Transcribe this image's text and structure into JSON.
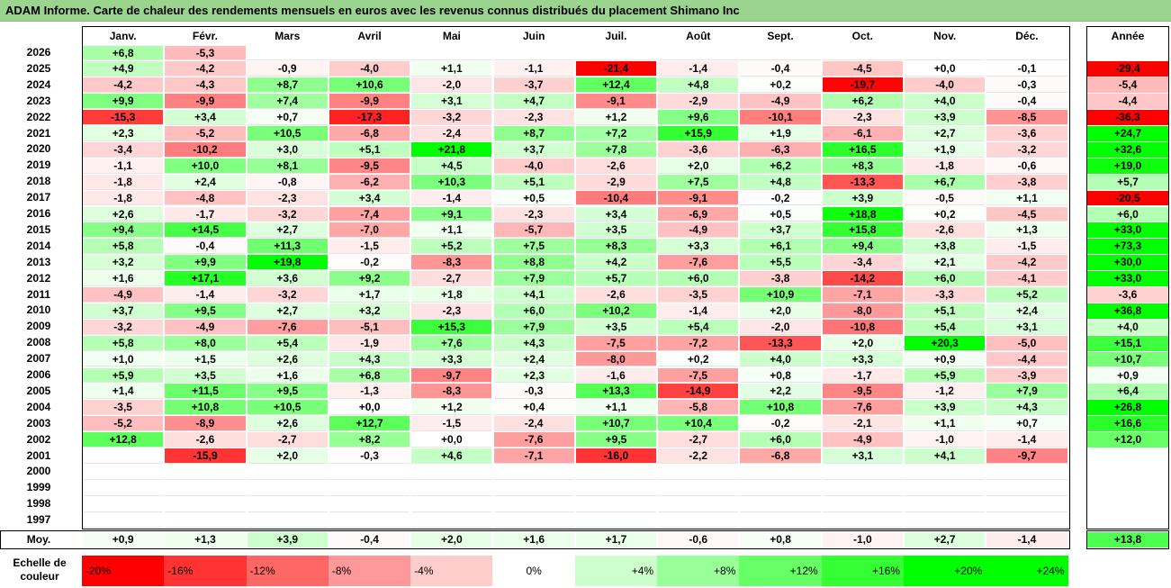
{
  "title": "ADAM Informe. Carte de chaleur des rendements mensuels en euros avec les revenus connus distribués du placement Shimano Inc",
  "chart_data": {
    "type": "heatmap",
    "columns": [
      "Janv.",
      "Févr.",
      "Mars",
      "Avril",
      "Mai",
      "Juin",
      "Juil.",
      "Août",
      "Sept.",
      "Oct.",
      "Nov.",
      "Déc."
    ],
    "year_header": "Année",
    "rows": [
      {
        "year": "2026",
        "values": [
          "+6,8",
          "-5,3",
          "",
          "",
          "",
          "",
          "",
          "",
          "",
          "",
          "",
          ""
        ],
        "annual": ""
      },
      {
        "year": "2025",
        "values": [
          "+4,9",
          "-4,2",
          "-0,9",
          "-4,0",
          "+1,1",
          "-1,1",
          "-21,4",
          "-1,4",
          "-0,4",
          "-4,5",
          "+0,0",
          "-0,1"
        ],
        "annual": "-29,4"
      },
      {
        "year": "2024",
        "values": [
          "-4,2",
          "-4,3",
          "+8,7",
          "+10,6",
          "-2,0",
          "-3,7",
          "+12,4",
          "+4,8",
          "+0,2",
          "-19,7",
          "-4,0",
          "-0,3"
        ],
        "annual": "-5,4"
      },
      {
        "year": "2023",
        "values": [
          "+9,9",
          "-9,9",
          "+7,4",
          "-9,9",
          "+3,1",
          "+4,7",
          "-9,1",
          "-2,9",
          "-4,9",
          "+6,2",
          "+4,0",
          "-0,4"
        ],
        "annual": "-4,4"
      },
      {
        "year": "2022",
        "values": [
          "-15,3",
          "+3,4",
          "+0,7",
          "-17,3",
          "-3,2",
          "-2,3",
          "+1,2",
          "+9,6",
          "-10,1",
          "-2,3",
          "+3,9",
          "-8,5"
        ],
        "annual": "-36,3"
      },
      {
        "year": "2021",
        "values": [
          "+2,3",
          "-5,2",
          "+10,5",
          "-6,8",
          "-2,4",
          "+8,7",
          "+7,2",
          "+15,9",
          "+1,9",
          "-6,1",
          "+2,7",
          "-3,6"
        ],
        "annual": "+24,7"
      },
      {
        "year": "2020",
        "values": [
          "-3,4",
          "-10,2",
          "+3,0",
          "+5,1",
          "+21,8",
          "+3,7",
          "+7,8",
          "-3,6",
          "-6,3",
          "+16,5",
          "+1,9",
          "-3,2"
        ],
        "annual": "+32,6"
      },
      {
        "year": "2019",
        "values": [
          "-1,1",
          "+10,0",
          "+8,1",
          "-9,5",
          "+4,5",
          "-4,0",
          "-2,6",
          "+2,0",
          "+6,2",
          "+8,3",
          "-1,8",
          "-0,6"
        ],
        "annual": "+19,0"
      },
      {
        "year": "2018",
        "values": [
          "-1,8",
          "+2,4",
          "-0,8",
          "-6,2",
          "+10,3",
          "+5,1",
          "-2,9",
          "+7,5",
          "+4,8",
          "-13,3",
          "+6,7",
          "-3,8"
        ],
        "annual": "+5,7"
      },
      {
        "year": "2017",
        "values": [
          "-1,8",
          "-4,8",
          "-2,3",
          "+3,4",
          "-1,4",
          "+0,5",
          "-10,4",
          "-9,1",
          "-0,2",
          "+3,9",
          "-0,5",
          "+1,1"
        ],
        "annual": "-20,5"
      },
      {
        "year": "2016",
        "values": [
          "+2,6",
          "-1,7",
          "-3,2",
          "-7,4",
          "+9,1",
          "-2,3",
          "+3,4",
          "-6,9",
          "+0,5",
          "+18,8",
          "+0,2",
          "-4,5"
        ],
        "annual": "+6,0"
      },
      {
        "year": "2015",
        "values": [
          "+9,4",
          "+14,5",
          "+2,7",
          "-7,0",
          "+1,1",
          "-5,7",
          "+3,5",
          "-4,9",
          "+3,7",
          "+15,8",
          "-2,6",
          "+1,3"
        ],
        "annual": "+33,0"
      },
      {
        "year": "2014",
        "values": [
          "+5,8",
          "-0,4",
          "+11,3",
          "-1,5",
          "+5,2",
          "+7,5",
          "+8,3",
          "+3,3",
          "+6,1",
          "+9,4",
          "+3,8",
          "-1,5"
        ],
        "annual": "+73,3"
      },
      {
        "year": "2013",
        "values": [
          "+3,2",
          "+9,9",
          "+19,8",
          "-0,2",
          "-8,3",
          "+8,8",
          "+4,2",
          "-7,6",
          "+5,5",
          "-3,4",
          "+2,1",
          "-4,2"
        ],
        "annual": "+30,0"
      },
      {
        "year": "2012",
        "values": [
          "+1,6",
          "+17,1",
          "+3,6",
          "+9,2",
          "-2,7",
          "+7,9",
          "+5,7",
          "+6,0",
          "-3,8",
          "-14,2",
          "+6,0",
          "-4,1"
        ],
        "annual": "+33,0"
      },
      {
        "year": "2011",
        "values": [
          "-4,9",
          "-1,4",
          "-3,2",
          "+1,7",
          "+1,8",
          "+4,1",
          "-2,6",
          "-3,5",
          "+10,9",
          "-7,1",
          "-3,3",
          "+5,2"
        ],
        "annual": "-3,6"
      },
      {
        "year": "2010",
        "values": [
          "+3,7",
          "+9,5",
          "+2,7",
          "+3,2",
          "-2,3",
          "+6,0",
          "+10,2",
          "-1,4",
          "+2,0",
          "-8,0",
          "+5,1",
          "+2,4"
        ],
        "annual": "+36,8"
      },
      {
        "year": "2009",
        "values": [
          "-3,2",
          "-4,9",
          "-7,6",
          "-5,1",
          "+15,3",
          "+7,9",
          "+3,5",
          "+5,4",
          "-2,0",
          "-10,8",
          "+5,4",
          "+3,1"
        ],
        "annual": "+4,0"
      },
      {
        "year": "2008",
        "values": [
          "+5,8",
          "+8,0",
          "+5,4",
          "-1,9",
          "+7,6",
          "+4,3",
          "-7,5",
          "-7,2",
          "-13,3",
          "+2,0",
          "+20,3",
          "-5,0"
        ],
        "annual": "+15,1"
      },
      {
        "year": "2007",
        "values": [
          "+1,0",
          "+1,5",
          "+2,6",
          "+4,3",
          "+3,3",
          "+2,4",
          "-8,0",
          "+0,2",
          "+4,0",
          "+3,3",
          "+0,9",
          "-4,4"
        ],
        "annual": "+10,7"
      },
      {
        "year": "2006",
        "values": [
          "+5,9",
          "+3,5",
          "+1,6",
          "+6,8",
          "-9,7",
          "+2,3",
          "-1,6",
          "-7,5",
          "+0,8",
          "-1,7",
          "+5,9",
          "-3,9"
        ],
        "annual": "+0,9"
      },
      {
        "year": "2005",
        "values": [
          "+1,4",
          "+11,5",
          "+9,5",
          "-1,3",
          "-8,3",
          "-0,3",
          "+13,3",
          "-14,9",
          "+2,2",
          "-9,5",
          "-1,2",
          "+7,9"
        ],
        "annual": "+6,4"
      },
      {
        "year": "2004",
        "values": [
          "-3,5",
          "+10,8",
          "+10,5",
          "+0,0",
          "+1,2",
          "+0,4",
          "+1,1",
          "-5,8",
          "+10,8",
          "-7,6",
          "+3,9",
          "+4,3"
        ],
        "annual": "+26,8"
      },
      {
        "year": "2003",
        "values": [
          "-5,2",
          "-8,9",
          "+2,6",
          "+12,7",
          "-1,5",
          "-2,4",
          "+10,7",
          "+10,4",
          "-0,2",
          "-2,1",
          "+1,1",
          "+0,7"
        ],
        "annual": "+16,6"
      },
      {
        "year": "2002",
        "values": [
          "+12,8",
          "-2,6",
          "-2,7",
          "+8,2",
          "+0,0",
          "-7,6",
          "+9,5",
          "-2,7",
          "+6,0",
          "-4,9",
          "-1,0",
          "-1,4"
        ],
        "annual": "+12,0"
      },
      {
        "year": "2001",
        "values": [
          "",
          "-15,9",
          "+2,0",
          "-0,3",
          "+4,6",
          "-7,1",
          "-16,0",
          "-2,2",
          "-6,8",
          "+3,1",
          "+4,1",
          "-9,7"
        ],
        "annual": ""
      },
      {
        "year": "2000",
        "values": [
          "",
          "",
          "",
          "",
          "",
          "",
          "",
          "",
          "",
          "",
          "",
          ""
        ],
        "annual": ""
      },
      {
        "year": "1999",
        "values": [
          "",
          "",
          "",
          "",
          "",
          "",
          "",
          "",
          "",
          "",
          "",
          ""
        ],
        "annual": ""
      },
      {
        "year": "1998",
        "values": [
          "",
          "",
          "",
          "",
          "",
          "",
          "",
          "",
          "",
          "",
          "",
          ""
        ],
        "annual": ""
      },
      {
        "year": "1997",
        "values": [
          "",
          "",
          "",
          "",
          "",
          "",
          "",
          "",
          "",
          "",
          "",
          ""
        ],
        "annual": ""
      }
    ],
    "average": {
      "label": "Moy.",
      "values": [
        "+0,9",
        "+1,3",
        "+3,9",
        "-0,4",
        "+2,0",
        "+1,6",
        "+1,7",
        "-0,6",
        "+0,8",
        "-1,0",
        "+2,7",
        "-1,4"
      ],
      "annual": "+13,8"
    },
    "scale": {
      "label_line1": "Echelle de",
      "label_line2": "couleur",
      "entries": [
        {
          "label": "-20%",
          "color": "#ff0000"
        },
        {
          "label": "-16%",
          "color": "#ff3333"
        },
        {
          "label": "-12%",
          "color": "#ff6666"
        },
        {
          "label": "-8%",
          "color": "#ff9999"
        },
        {
          "label": "-4%",
          "color": "#ffcccc"
        },
        {
          "label": "0%",
          "color": "#ffffff"
        },
        {
          "label": "+4%",
          "color": "#ccffcc"
        },
        {
          "label": "+8%",
          "color": "#99ff99"
        },
        {
          "label": "+12%",
          "color": "#66ff66"
        },
        {
          "label": "+16%",
          "color": "#33ff33"
        },
        {
          "label": "+20%",
          "color": "#00ff00"
        },
        {
          "label": "+24%",
          "color": "#00ff00"
        }
      ]
    }
  },
  "colors": {
    "title_bg": "#9bd48e",
    "negative_max": "#ff0000",
    "positive_max": "#00ff00"
  }
}
